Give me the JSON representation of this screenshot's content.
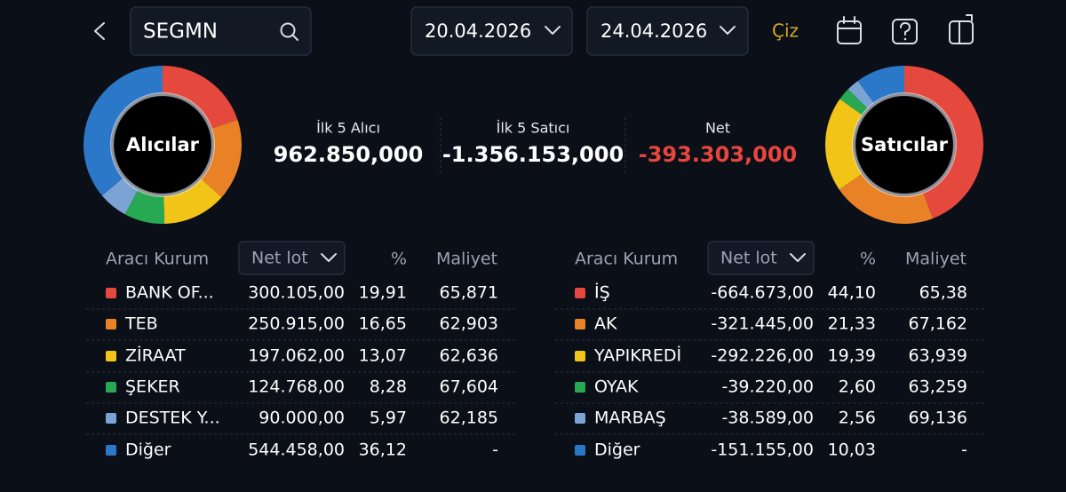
{
  "header": {
    "search": "SEGMN",
    "start_date": "20.04.2026",
    "end_date": "24.04.2026",
    "draw_button": "Çiz"
  },
  "summary": [
    {
      "label": "İlk 5 Alıcı",
      "value": "962.850,000"
    },
    {
      "label": "İlk 5 Satıcı",
      "value": "-1.356.153,000"
    },
    {
      "label": "Net",
      "value": "-393.303,000"
    }
  ],
  "buyers": {
    "donut_label": "Alıcılar",
    "columns": [
      "Aracı Kurum",
      "Net lot",
      "%",
      "Maliyet"
    ],
    "rows": [
      {
        "name": "BANK OF...",
        "color": "#e5483d",
        "net_lot": "300.105,00",
        "pct": "19,91",
        "cost": "65,871"
      },
      {
        "name": "TEB",
        "color": "#e98226",
        "net_lot": "250.915,00",
        "pct": "16,65",
        "cost": "62,903"
      },
      {
        "name": "ZİRAAT",
        "color": "#f2c418",
        "net_lot": "197.062,00",
        "pct": "13,07",
        "cost": "62,636"
      },
      {
        "name": "ŞEKER",
        "color": "#27a853",
        "net_lot": "124.768,00",
        "pct": "8,28",
        "cost": "67,604"
      },
      {
        "name": "DESTEK Y...",
        "color": "#7ba3d4",
        "net_lot": "90.000,00",
        "pct": "5,97",
        "cost": "62,185"
      },
      {
        "name": "Diğer",
        "color": "#2b78c9",
        "net_lot": "544.458,00",
        "pct": "36,12",
        "cost": "-"
      }
    ]
  },
  "sellers": {
    "donut_label": "Satıcılar",
    "columns": [
      "Aracı Kurum",
      "Net lot",
      "%",
      "Maliyet"
    ],
    "rows": [
      {
        "name": "İŞ",
        "color": "#e5483d",
        "net_lot": "-664.673,00",
        "pct": "44,10",
        "cost": "65,38"
      },
      {
        "name": "AK",
        "color": "#e98226",
        "net_lot": "-321.445,00",
        "pct": "21,33",
        "cost": "67,162"
      },
      {
        "name": "YAPIKREDİ",
        "color": "#f2c418",
        "net_lot": "-292.226,00",
        "pct": "19,39",
        "cost": "63,939"
      },
      {
        "name": "OYAK",
        "color": "#27a853",
        "net_lot": "-39.220,00",
        "pct": "2,60",
        "cost": "63,259"
      },
      {
        "name": "MARBAŞ",
        "color": "#7ba3d4",
        "net_lot": "-38.589,00",
        "pct": "2,56",
        "cost": "69,136"
      },
      {
        "name": "Diğer",
        "color": "#2b78c9",
        "net_lot": "-151.155,00",
        "pct": "10,03",
        "cost": "-"
      }
    ]
  }
}
